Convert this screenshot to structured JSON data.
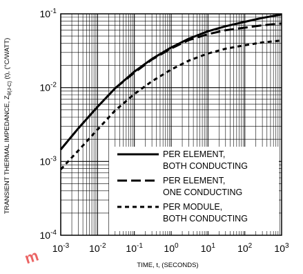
{
  "chart_data": {
    "type": "line",
    "xlabel": "TIME, t, (SECONDS)",
    "ylabel": "TRANSIENT THERMAL IMPEDANCE, Z",
    "ylabel_sub": "θ(J-C)",
    "ylabel_suffix": " (t), (°C/WATT)",
    "xscale": "log",
    "yscale": "log",
    "xlim": [
      0.001,
      1000
    ],
    "ylim": [
      0.0001,
      0.1
    ],
    "grid": true,
    "legend_position": "bottom-right",
    "x_tick_labels": [
      {
        "base": "10",
        "exp": "-3"
      },
      {
        "base": "10",
        "exp": "-2"
      },
      {
        "base": "10",
        "exp": "-1"
      },
      {
        "base": "10",
        "exp": "0"
      },
      {
        "base": "10",
        "exp": "1"
      },
      {
        "base": "10",
        "exp": "2"
      },
      {
        "base": "10",
        "exp": "3"
      }
    ],
    "y_tick_labels": [
      {
        "base": "10",
        "exp": "-4"
      },
      {
        "base": "10",
        "exp": "-3"
      },
      {
        "base": "10",
        "exp": "-2"
      },
      {
        "base": "10",
        "exp": "-1"
      }
    ],
    "x": [
      0.001,
      0.003,
      0.01,
      0.03,
      0.1,
      0.3,
      1,
      3,
      10,
      30,
      100,
      300,
      1000
    ],
    "series": [
      {
        "name": "PER ELEMENT, BOTH CONDUCTING",
        "line_style": "solid",
        "values": [
          0.00145,
          0.0028,
          0.0055,
          0.0098,
          0.0165,
          0.0245,
          0.035,
          0.046,
          0.058,
          0.068,
          0.078,
          0.088,
          0.098
        ]
      },
      {
        "name": "PER ELEMENT, ONE CONDUCTING",
        "line_style": "long-dash",
        "values": [
          0.00145,
          0.0028,
          0.0055,
          0.0098,
          0.016,
          0.024,
          0.034,
          0.044,
          0.053,
          0.06,
          0.065,
          0.07,
          0.074
        ]
      },
      {
        "name": "PER MODULE, BOTH CONDUCTING",
        "line_style": "short-dash",
        "values": [
          0.00078,
          0.0014,
          0.0027,
          0.0049,
          0.0082,
          0.0122,
          0.0176,
          0.0232,
          0.029,
          0.0337,
          0.0375,
          0.041,
          0.0435
        ]
      }
    ],
    "legend": [
      {
        "line1": "PER ELEMENT,",
        "line2": "BOTH CONDUCTING",
        "line_style": "solid"
      },
      {
        "line1": "PER ELEMENT,",
        "line2": "ONE CONDUCTING",
        "line_style": "long-dash"
      },
      {
        "line1": "PER MODULE,",
        "line2": "BOTH CONDUCTING",
        "line_style": "short-dash"
      }
    ]
  },
  "watermark": {
    "text": "m"
  }
}
